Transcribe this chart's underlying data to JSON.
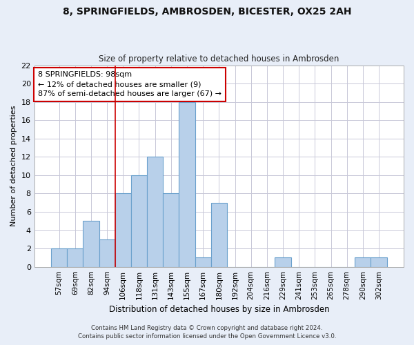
{
  "title_line1": "8, SPRINGFIELDS, AMBROSDEN, BICESTER, OX25 2AH",
  "title_line2": "Size of property relative to detached houses in Ambrosden",
  "xlabel": "Distribution of detached houses by size in Ambrosden",
  "ylabel": "Number of detached properties",
  "categories": [
    "57sqm",
    "69sqm",
    "82sqm",
    "94sqm",
    "106sqm",
    "118sqm",
    "131sqm",
    "143sqm",
    "155sqm",
    "167sqm",
    "180sqm",
    "192sqm",
    "204sqm",
    "216sqm",
    "229sqm",
    "241sqm",
    "253sqm",
    "265sqm",
    "278sqm",
    "290sqm",
    "302sqm"
  ],
  "values": [
    2,
    2,
    5,
    3,
    8,
    10,
    12,
    8,
    18,
    1,
    7,
    0,
    0,
    0,
    1,
    0,
    0,
    0,
    0,
    1,
    1
  ],
  "bar_color": "#b8d0ea",
  "bar_edge_color": "#6aa0cc",
  "red_line_x": 3.5,
  "annotation_text": "8 SPRINGFIELDS: 98sqm\n← 12% of detached houses are smaller (9)\n87% of semi-detached houses are larger (67) →",
  "annotation_box_color": "#ffffff",
  "annotation_box_edge_color": "#cc0000",
  "ylim": [
    0,
    22
  ],
  "yticks": [
    0,
    2,
    4,
    6,
    8,
    10,
    12,
    14,
    16,
    18,
    20,
    22
  ],
  "footer_line1": "Contains HM Land Registry data © Crown copyright and database right 2024.",
  "footer_line2": "Contains public sector information licensed under the Open Government Licence v3.0.",
  "background_color": "#e8eef8",
  "plot_bg_color": "#ffffff",
  "grid_color": "#c8c8d8"
}
